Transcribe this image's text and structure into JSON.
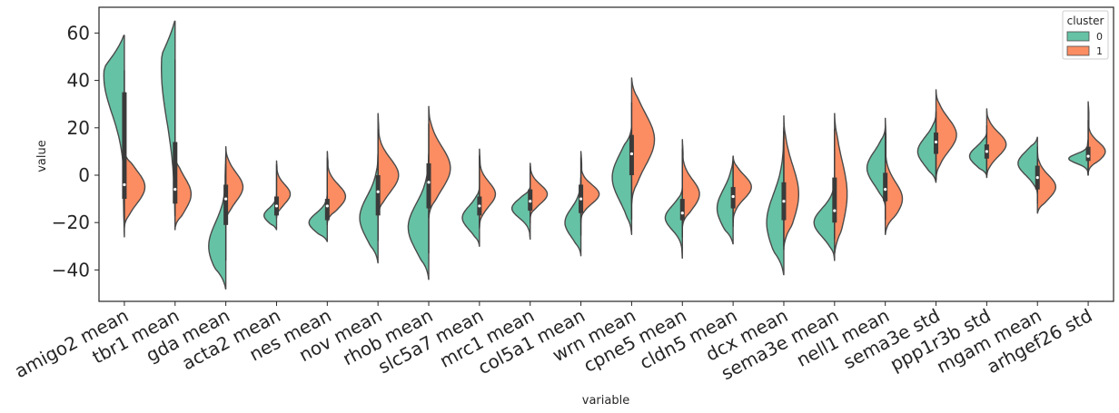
{
  "chart_data": {
    "type": "violin",
    "split": true,
    "xlabel": "variable",
    "ylabel": "value",
    "ylim": [
      -53,
      71
    ],
    "yticks": [
      -40,
      -20,
      0,
      20,
      40,
      60
    ],
    "grid": false,
    "legend": {
      "title": "cluster",
      "placement": "top-right",
      "entries": [
        "0",
        "1"
      ]
    },
    "colors": {
      "0": "#66c2a5",
      "1": "#fc8d62",
      "outline": "#4a4a4a",
      "box": "#3a3a3a"
    },
    "categories": [
      "amigo2 mean",
      "tbr1 mean",
      "gda mean",
      "acta2 mean",
      "nes mean",
      "nov mean",
      "rhob mean",
      "slc5a7 mean",
      "mrc1 mean",
      "col5a1 mean",
      "wrn mean",
      "cpne5 mean",
      "cldn5 mean",
      "dcx mean",
      "sema3e mean",
      "nell1 mean",
      "sema3e std",
      "ppp1r3b std",
      "mgam mean",
      "arhgef26 std"
    ],
    "series": [
      {
        "name": "0",
        "violins": [
          {
            "min": -26,
            "max": 59,
            "peak": 42,
            "width": 0.9,
            "spread": 16
          },
          {
            "min": -23,
            "max": 65,
            "peak": 45,
            "width": 0.6,
            "spread": 22
          },
          {
            "min": -48,
            "max": 8,
            "peak": -30,
            "width": 0.75,
            "spread": 10
          },
          {
            "min": -23,
            "max": -8,
            "peak": -17,
            "width": 0.55,
            "spread": 3
          },
          {
            "min": -28,
            "max": -8,
            "peak": -20,
            "width": 0.8,
            "spread": 4
          },
          {
            "min": -37,
            "max": 9,
            "peak": -18,
            "width": 0.8,
            "spread": 9
          },
          {
            "min": -44,
            "max": 9,
            "peak": -22,
            "width": 0.9,
            "spread": 10
          },
          {
            "min": -30,
            "max": -5,
            "peak": -18,
            "width": 0.75,
            "spread": 5
          },
          {
            "min": -27,
            "max": -5,
            "peak": -14,
            "width": 0.8,
            "spread": 4
          },
          {
            "min": -34,
            "max": -1,
            "peak": -20,
            "width": 0.7,
            "spread": 6
          },
          {
            "min": -25,
            "max": 20,
            "peak": -1,
            "width": 0.85,
            "spread": 10
          },
          {
            "min": -35,
            "max": -5,
            "peak": -18,
            "width": 0.75,
            "spread": 5
          },
          {
            "min": -29,
            "max": 8,
            "peak": -14,
            "width": 0.7,
            "spread": 8
          },
          {
            "min": -42,
            "max": 20,
            "peak": -20,
            "width": 0.75,
            "spread": 12
          },
          {
            "min": -36,
            "max": 0,
            "peak": -20,
            "width": 0.9,
            "spread": 6
          },
          {
            "min": -13,
            "max": 20,
            "peak": 3,
            "width": 0.8,
            "spread": 7
          },
          {
            "min": -3,
            "max": 26,
            "peak": 10,
            "width": 0.8,
            "spread": 6
          },
          {
            "min": 0,
            "max": 18,
            "peak": 8,
            "width": 0.75,
            "spread": 4
          },
          {
            "min": -8,
            "max": 16,
            "peak": 5,
            "width": 0.85,
            "spread": 5
          },
          {
            "min": 0,
            "max": 15,
            "peak": 7,
            "width": 0.85,
            "spread": 2
          }
        ]
      },
      {
        "name": "1",
        "violins": [
          {
            "min": -22,
            "max": 10,
            "peak": -5,
            "width": 0.9,
            "spread": 7
          },
          {
            "min": -22,
            "max": 8,
            "peak": -8,
            "width": 0.7,
            "spread": 7
          },
          {
            "min": -20,
            "max": 12,
            "peak": -5,
            "width": 0.75,
            "spread": 6
          },
          {
            "min": -18,
            "max": 6,
            "peak": -8,
            "width": 0.6,
            "spread": 4
          },
          {
            "min": -20,
            "max": 10,
            "peak": -9,
            "width": 0.8,
            "spread": 5
          },
          {
            "min": -18,
            "max": 26,
            "peak": 0,
            "width": 0.9,
            "spread": 7
          },
          {
            "min": -18,
            "max": 29,
            "peak": 3,
            "width": 0.95,
            "spread": 9
          },
          {
            "min": -22,
            "max": 11,
            "peak": -8,
            "width": 0.7,
            "spread": 5
          },
          {
            "min": -18,
            "max": 5,
            "peak": -8,
            "width": 0.75,
            "spread": 4
          },
          {
            "min": -20,
            "max": 10,
            "peak": -8,
            "width": 0.8,
            "spread": 4
          },
          {
            "min": -12,
            "max": 41,
            "peak": 15,
            "width": 1.0,
            "spread": 11
          },
          {
            "min": -22,
            "max": 15,
            "peak": -8,
            "width": 0.75,
            "spread": 6
          },
          {
            "min": -20,
            "max": 8,
            "peak": -5,
            "width": 0.8,
            "spread": 5
          },
          {
            "min": -30,
            "max": 25,
            "peak": -8,
            "width": 0.65,
            "spread": 12
          },
          {
            "min": -33,
            "max": 26,
            "peak": -8,
            "width": 0.55,
            "spread": 14
          },
          {
            "min": -25,
            "max": 24,
            "peak": -10,
            "width": 0.75,
            "spread": 7
          },
          {
            "min": -2,
            "max": 36,
            "peak": 17,
            "width": 0.9,
            "spread": 7
          },
          {
            "min": -1,
            "max": 28,
            "peak": 13,
            "width": 0.85,
            "spread": 5
          },
          {
            "min": -16,
            "max": 10,
            "peak": -5,
            "width": 0.8,
            "spread": 5
          },
          {
            "min": 1,
            "max": 31,
            "peak": 10,
            "width": 0.75,
            "spread": 4
          }
        ]
      }
    ],
    "boxes": [
      {
        "q1": -10,
        "q3": 35,
        "median": -4
      },
      {
        "q1": -12,
        "q3": 14,
        "median": -6
      },
      {
        "q1": -21,
        "q3": -4,
        "median": -10
      },
      {
        "q1": -17,
        "q3": -9,
        "median": -13
      },
      {
        "q1": -19,
        "q3": -10,
        "median": -13
      },
      {
        "q1": -17,
        "q3": 0,
        "median": -7
      },
      {
        "q1": -14,
        "q3": 5,
        "median": -3
      },
      {
        "q1": -17,
        "q3": -9,
        "median": -13
      },
      {
        "q1": -15,
        "q3": -6,
        "median": -11
      },
      {
        "q1": -16,
        "q3": -4,
        "median": -10
      },
      {
        "q1": 0,
        "q3": 17,
        "median": 9
      },
      {
        "q1": -19,
        "q3": -10,
        "median": -16
      },
      {
        "q1": -14,
        "q3": -5,
        "median": -9
      },
      {
        "q1": -19,
        "q3": -3,
        "median": -11
      },
      {
        "q1": -20,
        "q3": -1,
        "median": -15
      },
      {
        "q1": -11,
        "q3": 1,
        "median": -6
      },
      {
        "q1": 9,
        "q3": 18,
        "median": 14
      },
      {
        "q1": 7,
        "q3": 13,
        "median": 10
      },
      {
        "q1": -6,
        "q3": 4,
        "median": -1
      },
      {
        "q1": 6,
        "q3": 12,
        "median": 8
      }
    ]
  }
}
